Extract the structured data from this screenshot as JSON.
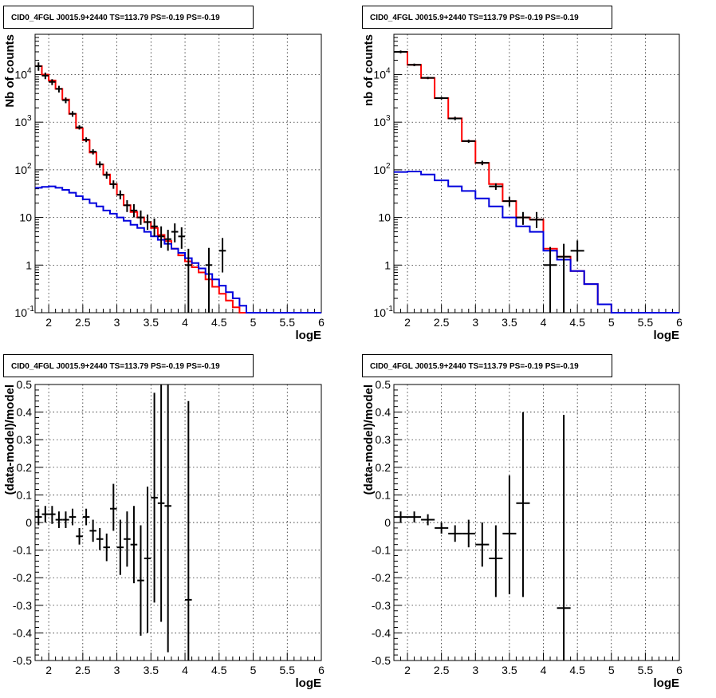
{
  "chart_data": [
    {
      "type": "line",
      "title": "CID0_4FGL J0015.9+2440 TS=113.79 PS=-0.19 PS=-0.19",
      "xlabel": "logE",
      "ylabel": "Nb of counts",
      "xlim": [
        1.8,
        6.0
      ],
      "ylim": [
        0.1,
        70000
      ],
      "yscale": "log",
      "grid": true,
      "xticks": [
        "2",
        "2.5",
        "3",
        "3.5",
        "4",
        "4.5",
        "5",
        "5.5",
        "6"
      ],
      "yticks": [
        "10-1",
        "1",
        "10",
        "102",
        "103",
        "104"
      ],
      "series": [
        {
          "role": "model-total",
          "color": "#ff0000",
          "drawstyle": "steps",
          "edges": [
            1.8,
            1.9,
            2.0,
            2.1,
            2.2,
            2.3,
            2.4,
            2.5,
            2.6,
            2.7,
            2.8,
            2.9,
            3.0,
            3.1,
            3.2,
            3.3,
            3.4,
            3.5,
            3.6,
            3.7,
            3.8,
            3.9,
            4.0,
            4.1,
            4.2,
            4.3,
            4.4,
            4.5,
            4.6,
            4.7,
            4.8,
            4.9,
            5.0,
            5.1,
            5.2,
            5.3,
            5.4,
            5.5,
            5.6,
            5.7,
            5.8,
            5.9,
            6.0
          ],
          "values": [
            15000,
            10000,
            7500,
            5000,
            3000,
            1500,
            750,
            420,
            230,
            130,
            80,
            50,
            30,
            18,
            13,
            10,
            8,
            6,
            4.3,
            3.2,
            2.2,
            1.6,
            1.2,
            0.9,
            0.7,
            0.5,
            0.35,
            0.25,
            0.18,
            0.13,
            0.1,
            0.1,
            0.1,
            0.1,
            0.1,
            0.1,
            0.1,
            0.1,
            0.1,
            0.1,
            0.1,
            0.1
          ]
        },
        {
          "role": "model-background",
          "color": "#0000dd",
          "drawstyle": "steps",
          "edges": [
            1.8,
            1.9,
            2.0,
            2.1,
            2.2,
            2.3,
            2.4,
            2.5,
            2.6,
            2.7,
            2.8,
            2.9,
            3.0,
            3.1,
            3.2,
            3.3,
            3.4,
            3.5,
            3.6,
            3.7,
            3.8,
            3.9,
            4.0,
            4.1,
            4.2,
            4.3,
            4.4,
            4.5,
            4.6,
            4.7,
            4.8,
            4.9,
            5.0,
            5.1,
            5.2,
            5.3,
            5.4,
            5.5,
            5.6,
            5.7,
            5.8,
            5.9,
            6.0
          ],
          "values": [
            42,
            44,
            45,
            42,
            38,
            33,
            28,
            24,
            20,
            17,
            14,
            12,
            10,
            8.5,
            7,
            6,
            5,
            4,
            3.4,
            2.8,
            2.2,
            1.8,
            1.4,
            1.1,
            0.85,
            0.65,
            0.5,
            0.37,
            0.27,
            0.2,
            0.14,
            0.1,
            0.1,
            0.1,
            0.1,
            0.1,
            0.1,
            0.1,
            0.1,
            0.1,
            0.1,
            0.1
          ]
        }
      ],
      "points": {
        "color": "#000000",
        "x": [
          1.85,
          1.95,
          2.05,
          2.15,
          2.25,
          2.35,
          2.45,
          2.55,
          2.65,
          2.75,
          2.85,
          2.95,
          3.05,
          3.15,
          3.25,
          3.35,
          3.45,
          3.55,
          3.65,
          3.75,
          3.85,
          3.95,
          4.05,
          4.35,
          4.55
        ],
        "y": [
          15000,
          9500,
          7000,
          5000,
          2900,
          1500,
          780,
          430,
          240,
          130,
          78,
          50,
          30,
          18,
          14,
          10,
          8,
          6.5,
          4,
          3.5,
          5,
          4,
          1,
          1,
          2
        ],
        "xerr": 0.05,
        "ylow": [
          12000,
          8000,
          6000,
          4200,
          2500,
          1300,
          700,
          380,
          210,
          110,
          65,
          40,
          24,
          13,
          10,
          7,
          5.5,
          4,
          2.3,
          2,
          3,
          2.2,
          0.1,
          0.1,
          0.7
        ],
        "yhigh": [
          18000,
          11000,
          8000,
          5800,
          3300,
          1700,
          860,
          480,
          270,
          150,
          92,
          60,
          37,
          23,
          19,
          14,
          11.5,
          9.5,
          6.5,
          5.5,
          7.5,
          6.2,
          2.2,
          2.3,
          3.7
        ]
      }
    },
    {
      "type": "line",
      "title": "CID0_4FGL J0015.9+2440 TS=113.79 PS=-0.19 PS=-0.19",
      "xlabel": "logE",
      "ylabel": "nb of counts",
      "xlim": [
        1.8,
        6.0
      ],
      "ylim": [
        0.1,
        70000
      ],
      "yscale": "log",
      "grid": true,
      "xticks": [
        "2",
        "2.5",
        "3",
        "3.5",
        "4",
        "4.5",
        "5",
        "5.5",
        "6"
      ],
      "yticks": [
        "10-1",
        "1",
        "10",
        "102",
        "103",
        "104"
      ],
      "series": [
        {
          "role": "model-total",
          "color": "#ff0000",
          "drawstyle": "steps",
          "edges": [
            1.8,
            2.0,
            2.2,
            2.4,
            2.6,
            2.8,
            3.0,
            3.2,
            3.4,
            3.6,
            3.8,
            4.0,
            4.2,
            4.4,
            4.6,
            4.8,
            5.0,
            5.2,
            5.4,
            5.6,
            5.8,
            6.0
          ],
          "values": [
            30000,
            16000,
            8500,
            3200,
            1200,
            400,
            140,
            50,
            22,
            10,
            9,
            2.2,
            1.5,
            0.75,
            0.4,
            0.15,
            0.1,
            0.1,
            0.1,
            0.1,
            0.1
          ]
        },
        {
          "role": "model-background",
          "color": "#0000dd",
          "drawstyle": "steps",
          "edges": [
            1.8,
            2.0,
            2.2,
            2.4,
            2.6,
            2.8,
            3.0,
            3.2,
            3.4,
            3.6,
            3.8,
            4.0,
            4.2,
            4.4,
            4.6,
            4.8,
            5.0,
            5.2,
            5.4,
            5.6,
            5.8,
            6.0
          ],
          "values": [
            90,
            92,
            80,
            60,
            45,
            36,
            25,
            17,
            10,
            6.5,
            5,
            2,
            1.3,
            0.75,
            0.4,
            0.15,
            0.1,
            0.1,
            0.1,
            0.1,
            0.1
          ]
        }
      ],
      "points": {
        "color": "#000000",
        "x": [
          1.9,
          2.1,
          2.3,
          2.5,
          2.7,
          2.9,
          3.1,
          3.3,
          3.5,
          3.7,
          3.9,
          4.1,
          4.3,
          4.5
        ],
        "y": [
          30000,
          16000,
          8500,
          3200,
          1200,
          400,
          140,
          45,
          22,
          10,
          9,
          1,
          1.5,
          2
        ],
        "xerr": 0.1,
        "ylow": [
          28000,
          15000,
          8000,
          3000,
          1100,
          370,
          125,
          38,
          17,
          7,
          6,
          0.1,
          0.1,
          1.2
        ],
        "yhigh": [
          32000,
          17000,
          9000,
          3400,
          1300,
          430,
          155,
          52,
          27,
          13,
          13,
          2.4,
          2.8,
          3.3
        ]
      }
    },
    {
      "type": "scatter",
      "title": "CID0_4FGL J0015.9+2440 TS=113.79 PS=-0.19 PS=-0.19",
      "xlabel": "logE",
      "ylabel": "(data-model)/model",
      "xlim": [
        1.8,
        6.0
      ],
      "ylim": [
        -0.5,
        0.5
      ],
      "grid": true,
      "xticks": [
        "2",
        "2.5",
        "3",
        "3.5",
        "4",
        "4.5",
        "5",
        "5.5",
        "6"
      ],
      "yticks": [
        "-0.5",
        "-0.4",
        "-0.3",
        "-0.2",
        "-0.1",
        "0",
        "0.1",
        "0.2",
        "0.3",
        "0.4",
        "0.5"
      ],
      "points": {
        "color": "#000000",
        "x": [
          1.85,
          1.95,
          2.05,
          2.15,
          2.25,
          2.35,
          2.45,
          2.55,
          2.65,
          2.75,
          2.85,
          2.95,
          3.05,
          3.15,
          3.25,
          3.35,
          3.45,
          3.55,
          3.65,
          3.75,
          4.05
        ],
        "y": [
          0.02,
          0.03,
          0.03,
          0.01,
          0.01,
          0.02,
          -0.05,
          0.02,
          -0.03,
          -0.06,
          -0.09,
          0.05,
          -0.09,
          -0.06,
          -0.08,
          -0.21,
          -0.13,
          0.09,
          0.07,
          0.06,
          -0.28
        ],
        "xerr": 0.05,
        "ylow": [
          -0.01,
          0.0,
          -0.005,
          -0.02,
          -0.02,
          -0.01,
          -0.08,
          -0.01,
          -0.07,
          -0.1,
          -0.14,
          -0.03,
          -0.19,
          -0.16,
          -0.22,
          -0.41,
          -0.4,
          -0.29,
          -0.36,
          -0.47,
          -0.6
        ],
        "yhigh": [
          0.05,
          0.06,
          0.06,
          0.04,
          0.04,
          0.05,
          -0.02,
          0.05,
          0.01,
          -0.02,
          -0.04,
          0.14,
          0.01,
          0.04,
          0.06,
          -0.01,
          0.13,
          0.47,
          0.5,
          0.5,
          0.44
        ]
      }
    },
    {
      "type": "scatter",
      "title": "CID0_4FGL J0015.9+2440 TS=113.79 PS=-0.19 PS=-0.19",
      "xlabel": "logE",
      "ylabel": "(data-model)/model",
      "xlim": [
        1.8,
        6.0
      ],
      "ylim": [
        -0.5,
        0.5
      ],
      "grid": true,
      "xticks": [
        "2",
        "2.5",
        "3",
        "3.5",
        "4",
        "4.5",
        "5",
        "5.5",
        "6"
      ],
      "yticks": [
        "-0.5",
        "-0.4",
        "-0.3",
        "-0.2",
        "-0.1",
        "0",
        "0.1",
        "0.2",
        "0.3",
        "0.4",
        "0.5"
      ],
      "points": {
        "color": "#000000",
        "x": [
          1.9,
          2.1,
          2.3,
          2.5,
          2.7,
          2.9,
          3.1,
          3.3,
          3.5,
          3.7,
          4.3
        ],
        "y": [
          0.02,
          0.02,
          0.01,
          -0.02,
          -0.04,
          -0.04,
          -0.08,
          -0.13,
          -0.04,
          0.07,
          -0.31
        ],
        "xerr": 0.1,
        "ylow": [
          0.0,
          0.0,
          -0.01,
          -0.04,
          -0.07,
          -0.09,
          -0.16,
          -0.27,
          -0.26,
          -0.27,
          -0.5
        ],
        "yhigh": [
          0.04,
          0.04,
          0.03,
          0.0,
          -0.01,
          0.01,
          0.0,
          -0.01,
          0.17,
          0.4,
          0.39
        ]
      }
    }
  ]
}
